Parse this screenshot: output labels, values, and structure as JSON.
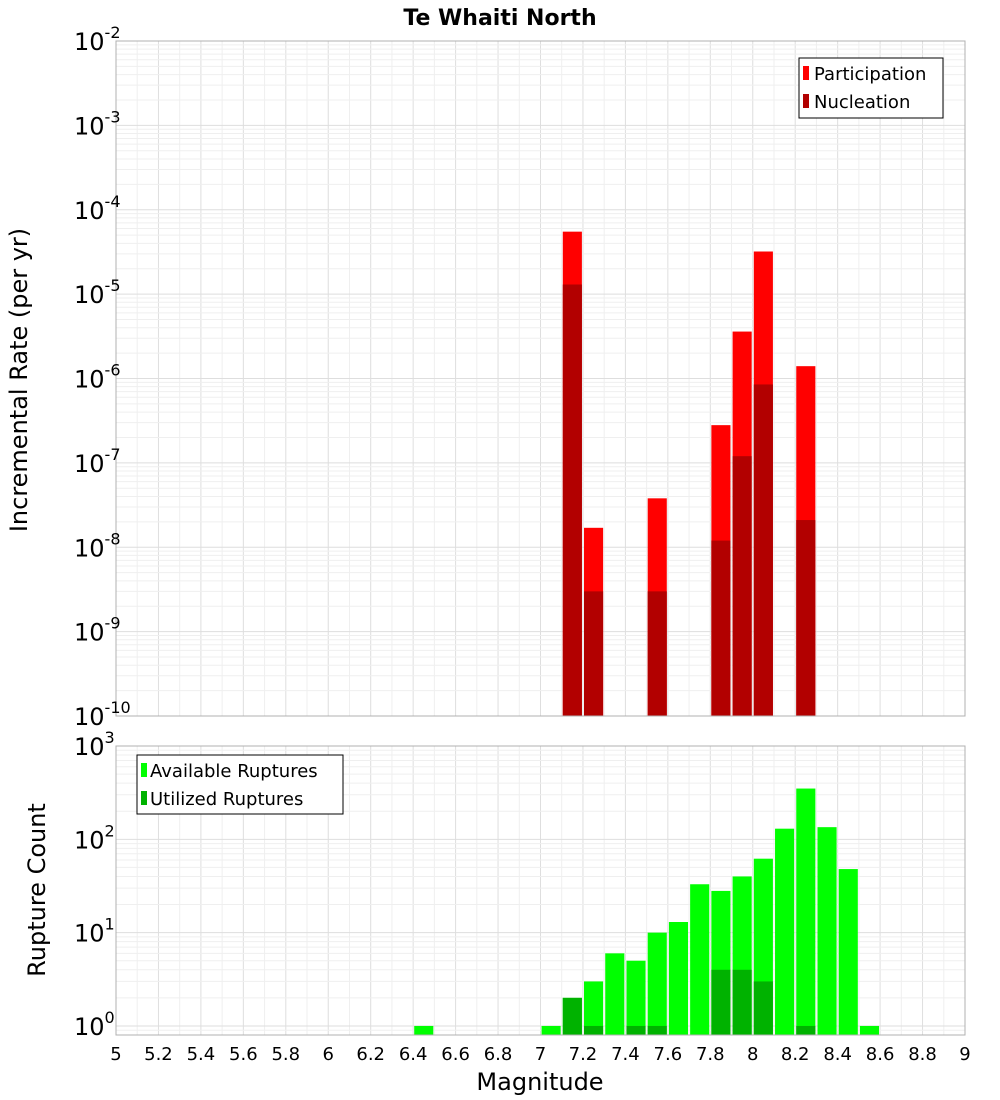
{
  "chart_data": [
    {
      "type": "bar",
      "title": "Te Whaiti North",
      "xlabel": "",
      "ylabel": "Incremental Rate (per yr)",
      "x_range": [
        5,
        9
      ],
      "y_scale": "log",
      "ylim": [
        1e-10,
        0.01
      ],
      "y_ticks": [
        {
          "base": "10",
          "exp": "-10"
        },
        {
          "base": "10",
          "exp": "-9"
        },
        {
          "base": "10",
          "exp": "-8"
        },
        {
          "base": "10",
          "exp": "-7"
        },
        {
          "base": "10",
          "exp": "-6"
        },
        {
          "base": "10",
          "exp": "-5"
        },
        {
          "base": "10",
          "exp": "-4"
        },
        {
          "base": "10",
          "exp": "-3"
        },
        {
          "base": "10",
          "exp": "-2"
        }
      ],
      "grid": true,
      "legend_position": "top-right",
      "bar_width": 0.09,
      "series": [
        {
          "name": "Participation",
          "color": "#ff0000",
          "x": [
            7.15,
            7.25,
            7.55,
            7.85,
            7.95,
            8.05,
            8.25
          ],
          "values": [
            5.5e-05,
            1.7e-08,
            3.8e-08,
            2.8e-07,
            3.6e-06,
            3.2e-05,
            1.4e-06
          ]
        },
        {
          "name": "Nucleation",
          "color": "#b20000",
          "x": [
            7.15,
            7.25,
            7.55,
            7.85,
            7.95,
            8.05,
            8.25
          ],
          "values": [
            1.3e-05,
            3e-09,
            3e-09,
            1.2e-08,
            1.2e-07,
            8.5e-07,
            2.1e-08
          ]
        }
      ]
    },
    {
      "type": "bar",
      "title": "",
      "xlabel": "Magnitude",
      "ylabel": "Rupture Count",
      "x_range": [
        5,
        9
      ],
      "x_ticks": [
        "5",
        "5.2",
        "5.4",
        "5.6",
        "5.8",
        "6",
        "6.2",
        "6.4",
        "6.6",
        "6.8",
        "7",
        "7.2",
        "7.4",
        "7.6",
        "7.8",
        "8",
        "8.2",
        "8.4",
        "8.6",
        "8.8",
        "9"
      ],
      "y_scale": "log",
      "ylim": [
        0.8,
        1000
      ],
      "y_ticks": [
        {
          "base": "10",
          "exp": "0"
        },
        {
          "base": "10",
          "exp": "1"
        },
        {
          "base": "10",
          "exp": "2"
        },
        {
          "base": "10",
          "exp": "3"
        }
      ],
      "grid": true,
      "legend_position": "top-left",
      "bar_width": 0.09,
      "series": [
        {
          "name": "Available Ruptures",
          "color": "#00ff00",
          "x": [
            6.45,
            7.05,
            7.15,
            7.25,
            7.35,
            7.45,
            7.55,
            7.65,
            7.75,
            7.85,
            7.95,
            8.05,
            8.15,
            8.25,
            8.35,
            8.45,
            8.55
          ],
          "values": [
            1,
            1,
            2,
            3,
            6,
            5,
            10,
            13,
            33,
            28,
            40,
            62,
            130,
            350,
            135,
            48,
            1
          ]
        },
        {
          "name": "Utilized Ruptures",
          "color": "#00b200",
          "x": [
            7.15,
            7.25,
            7.45,
            7.55,
            7.85,
            7.95,
            8.05,
            8.25
          ],
          "values": [
            2,
            1,
            1,
            1,
            4,
            4,
            3,
            1
          ]
        }
      ]
    }
  ]
}
